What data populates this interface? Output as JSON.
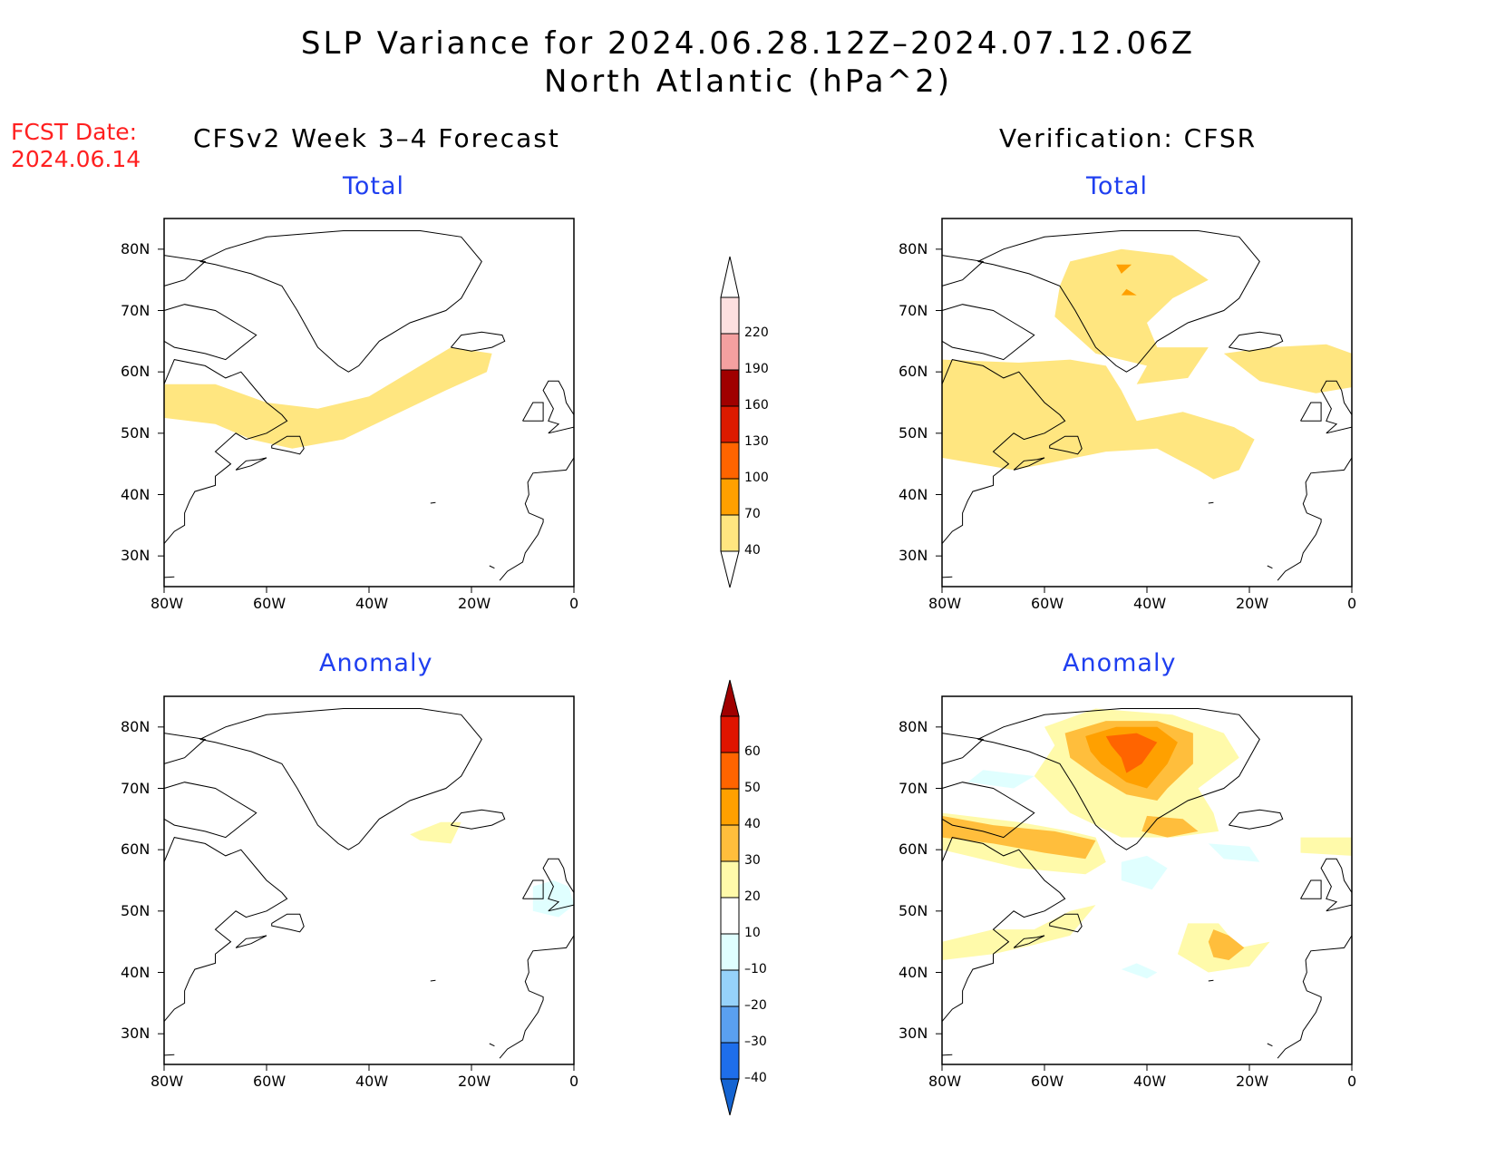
{
  "title": {
    "line1": "SLP Variance for 2024.06.28.12Z–2024.07.12.06Z",
    "line2": "North Atlantic (hPa^2)"
  },
  "fcst": {
    "label": "FCST Date:",
    "date": "2024.06.14"
  },
  "columns": {
    "left": "CFSv2 Week 3–4 Forecast",
    "right": "Verification: CFSR"
  },
  "panels": [
    {
      "id": "forecast-total",
      "subtitle": "Total"
    },
    {
      "id": "verification-total",
      "subtitle": "Total"
    },
    {
      "id": "forecast-anomaly",
      "subtitle": "Anomaly"
    },
    {
      "id": "verification-anomaly",
      "subtitle": "Anomaly"
    }
  ],
  "axes": {
    "lat_labels": [
      "80N",
      "70N",
      "60N",
      "50N",
      "40N",
      "30N"
    ],
    "lat_values": [
      80,
      70,
      60,
      50,
      40,
      30
    ],
    "lon_labels": [
      "80W",
      "60W",
      "40W",
      "20W",
      "0"
    ],
    "lon_values": [
      -80,
      -60,
      -40,
      -20,
      0
    ],
    "lat_range": [
      25,
      85
    ],
    "lon_range": [
      -80,
      0
    ]
  },
  "total_colorbar": {
    "levels": [
      "220",
      "190",
      "160",
      "130",
      "100",
      "70",
      "40"
    ],
    "colors": [
      "#fde0e0",
      "#f4a0a0",
      "#a00000",
      "#dc1a00",
      "#ff6400",
      "#ffa000",
      "#ffe680"
    ]
  },
  "anomaly_colorbar": {
    "levels": [
      "60",
      "50",
      "40",
      "30",
      "20",
      "10",
      "–10",
      "–20",
      "–30",
      "–40"
    ],
    "colors": [
      "#a00000",
      "#e01400",
      "#ff6400",
      "#ffa000",
      "#ffbe3c",
      "#fffaaa",
      "#ffffff",
      "#e0ffff",
      "#96d2fa",
      "#5aa0f0",
      "#1e6eeb",
      "#1464d2"
    ]
  },
  "colors": {
    "title_red": "#ff2020",
    "subtitle_blue": "#1f3ff0",
    "shade_light_yellow": "#ffe680",
    "shade_pale_yellow": "#fffaaa",
    "shade_light_orange": "#ffbe3c",
    "shade_orange": "#ffa000",
    "shade_dark_orange": "#ff6400",
    "shade_light_cyan": "#e0ffff"
  }
}
